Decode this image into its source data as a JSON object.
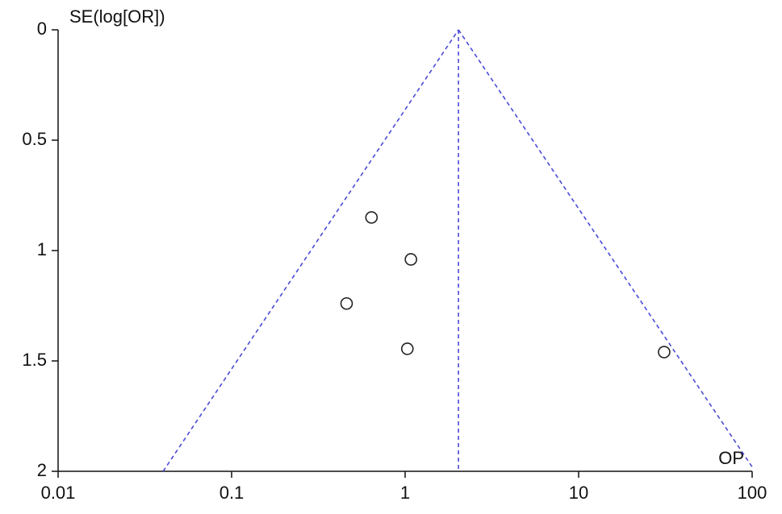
{
  "chart_data": {
    "type": "scatter",
    "y_label": "SE(log[OR])",
    "x_label": "OP",
    "x_scale": "log",
    "xlim": [
      0.01,
      100
    ],
    "xticks": [
      0.01,
      0.1,
      1,
      10,
      100
    ],
    "ylim": [
      0,
      2
    ],
    "y_inverted": true,
    "yticks": [
      0,
      0.5,
      1,
      1.5,
      2
    ],
    "grid": false,
    "series": [
      {
        "color": "#222222",
        "marker": "hollow-circle",
        "x": [
          0.64,
          1.08,
          0.46,
          1.03,
          31.1
        ],
        "values": [
          0.85,
          1.04,
          1.24,
          1.445,
          1.46
        ]
      }
    ],
    "reference_lines": [
      {
        "color": "#4a4ad8",
        "dash": true,
        "x": [
          0.0403,
          2.03
        ],
        "values": [
          2,
          0
        ]
      },
      {
        "color": "#4a4ad8",
        "dash": true,
        "x": [
          2.03,
          100
        ],
        "values": [
          0,
          1.98
        ]
      },
      {
        "color": "#4a4ad8",
        "dash": true,
        "x": [
          2.03,
          2.03
        ],
        "values": [
          0,
          2
        ]
      }
    ]
  }
}
